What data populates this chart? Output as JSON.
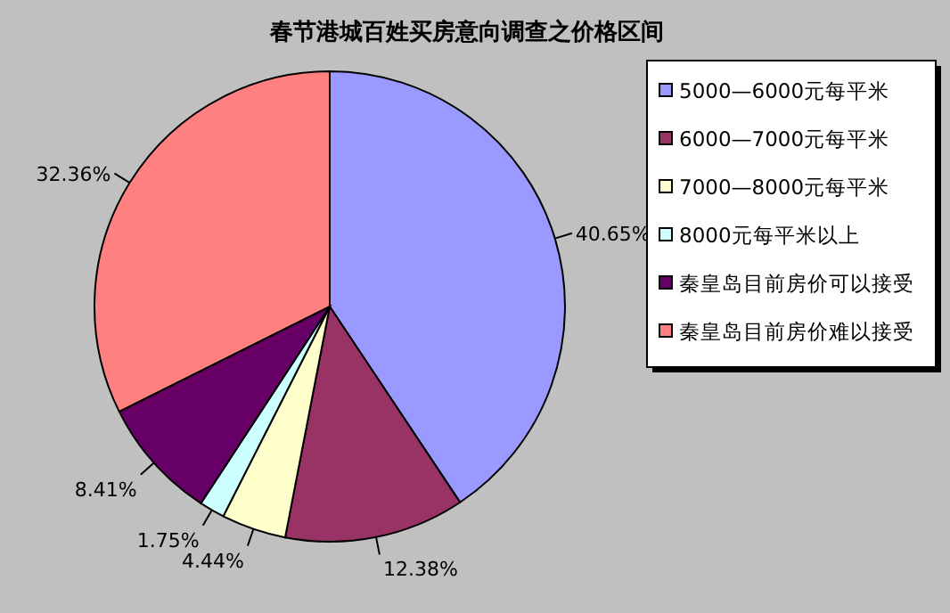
{
  "chart_data": {
    "type": "pie",
    "title": "春节港城百姓买房意向调查之价格区间",
    "categories": [
      "5000—6000元每平米",
      "6000—7000元每平米",
      "7000—8000元每平米",
      "8000元每平米以上",
      "秦皇岛目前房价可以接受",
      "秦皇岛目前房价难以接受"
    ],
    "values": [
      40.65,
      12.38,
      4.44,
      1.75,
      8.41,
      32.36
    ],
    "value_labels": [
      "40.65%",
      "12.38%",
      "4.44%",
      "1.75%",
      "8.41%",
      "32.36%"
    ],
    "colors": [
      "#9999ff",
      "#993366",
      "#ffffcc",
      "#ccffff",
      "#660066",
      "#ff8080"
    ],
    "legend": "right"
  }
}
